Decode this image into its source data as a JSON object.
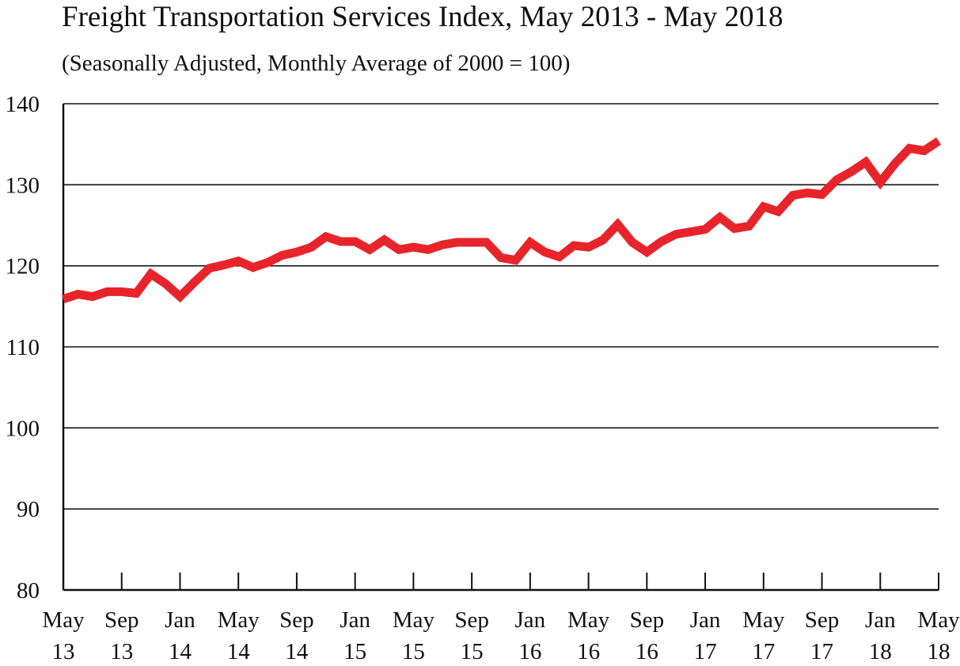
{
  "chart_data": {
    "type": "line",
    "title": "Freight Transportation Services Index, May 2013 - May 2018",
    "subtitle": "(Seasonally Adjusted, Monthly Average of 2000 = 100)",
    "xlabel": "",
    "ylabel": "",
    "ylim": [
      80,
      140
    ],
    "yticks": [
      "80",
      "90",
      "100",
      "110",
      "120",
      "130",
      "140"
    ],
    "grid": true,
    "line_color": "#e8242b",
    "x_tick_labels": [
      {
        "index": 0,
        "month": "May",
        "year": "13"
      },
      {
        "index": 4,
        "month": "Sep",
        "year": "13"
      },
      {
        "index": 8,
        "month": "Jan",
        "year": "14"
      },
      {
        "index": 12,
        "month": "May",
        "year": "14"
      },
      {
        "index": 16,
        "month": "Sep",
        "year": "14"
      },
      {
        "index": 20,
        "month": "Jan",
        "year": "15"
      },
      {
        "index": 24,
        "month": "May",
        "year": "15"
      },
      {
        "index": 28,
        "month": "Sep",
        "year": "15"
      },
      {
        "index": 32,
        "month": "Jan",
        "year": "16"
      },
      {
        "index": 36,
        "month": "May",
        "year": "16"
      },
      {
        "index": 40,
        "month": "Sep",
        "year": "16"
      },
      {
        "index": 44,
        "month": "Jan",
        "year": "17"
      },
      {
        "index": 48,
        "month": "May",
        "year": "17"
      },
      {
        "index": 52,
        "month": "Sep",
        "year": "17"
      },
      {
        "index": 56,
        "month": "Jan",
        "year": "18"
      },
      {
        "index": 60,
        "month": "May",
        "year": "18"
      }
    ],
    "series": [
      {
        "values": [
          115.9,
          116.5,
          116.2,
          116.8,
          116.8,
          116.6,
          119.0,
          117.8,
          116.2,
          118.0,
          119.7,
          120.1,
          120.6,
          119.8,
          120.4,
          121.3,
          121.7,
          122.3,
          123.6,
          123.0,
          123.0,
          122.0,
          123.2,
          122.0,
          122.3,
          122.0,
          122.6,
          122.9,
          122.9,
          122.9,
          121.0,
          120.7,
          122.9,
          121.7,
          121.1,
          122.5,
          122.3,
          123.2,
          125.1,
          122.9,
          121.7,
          123.0,
          123.9,
          124.2,
          124.5,
          126.0,
          124.6,
          124.9,
          127.3,
          126.7,
          128.7,
          129.0,
          128.8,
          130.6,
          131.6,
          132.8,
          130.3,
          132.6,
          134.5,
          134.2,
          135.4
        ]
      }
    ]
  }
}
